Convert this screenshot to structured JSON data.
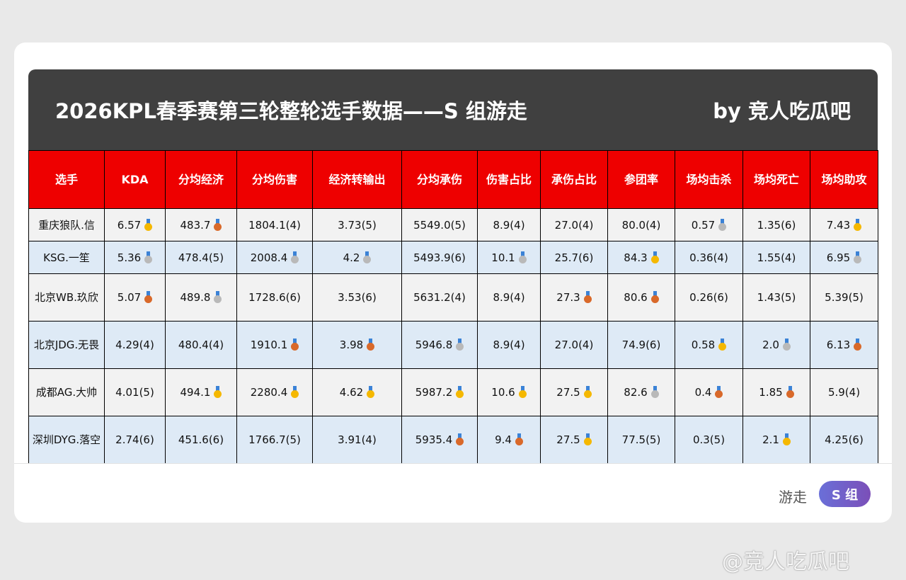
{
  "header": {
    "title": "2026KPL春季赛第三轮整轮选手数据——S 组游走",
    "byline": "by 竞人吃瓜吧"
  },
  "medal_colors": {
    "gold": "#f5b800",
    "silver": "#b9b9b9",
    "bronze": "#d9692a"
  },
  "table": {
    "columns": [
      "选手",
      "KDA",
      "分均经济",
      "分均伤害",
      "经济转输出",
      "分均承伤",
      "伤害占比",
      "承伤占比",
      "参团率",
      "场均击杀",
      "场均死亡",
      "场均助攻"
    ],
    "rows": [
      [
        {
          "v": "重庆狼队.信"
        },
        {
          "v": "6.57",
          "m": "gold"
        },
        {
          "v": "483.7",
          "m": "bronze"
        },
        {
          "v": "1804.1(4)"
        },
        {
          "v": "3.73(5)"
        },
        {
          "v": "5549.0(5)"
        },
        {
          "v": "8.9(4)"
        },
        {
          "v": "27.0(4)"
        },
        {
          "v": "80.0(4)"
        },
        {
          "v": "0.57",
          "m": "silver"
        },
        {
          "v": "1.35(6)"
        },
        {
          "v": "7.43",
          "m": "gold"
        }
      ],
      [
        {
          "v": "KSG.一笙"
        },
        {
          "v": "5.36",
          "m": "silver"
        },
        {
          "v": "478.4(5)"
        },
        {
          "v": "2008.4",
          "m": "silver"
        },
        {
          "v": "4.2",
          "m": "silver"
        },
        {
          "v": "5493.9(6)"
        },
        {
          "v": "10.1",
          "m": "silver"
        },
        {
          "v": "25.7(6)"
        },
        {
          "v": "84.3",
          "m": "gold"
        },
        {
          "v": "0.36(4)"
        },
        {
          "v": "1.55(4)"
        },
        {
          "v": "6.95",
          "m": "silver"
        }
      ],
      [
        {
          "v": "北京WB.玖欣"
        },
        {
          "v": "5.07",
          "m": "bronze"
        },
        {
          "v": "489.8",
          "m": "silver"
        },
        {
          "v": "1728.6(6)"
        },
        {
          "v": "3.53(6)"
        },
        {
          "v": "5631.2(4)"
        },
        {
          "v": "8.9(4)"
        },
        {
          "v": "27.3",
          "m": "bronze"
        },
        {
          "v": "80.6",
          "m": "bronze"
        },
        {
          "v": "0.26(6)"
        },
        {
          "v": "1.43(5)"
        },
        {
          "v": "5.39(5)"
        }
      ],
      [
        {
          "v": "北京JDG.无畏"
        },
        {
          "v": "4.29(4)"
        },
        {
          "v": "480.4(4)"
        },
        {
          "v": "1910.1",
          "m": "bronze"
        },
        {
          "v": "3.98",
          "m": "bronze"
        },
        {
          "v": "5946.8",
          "m": "silver"
        },
        {
          "v": "8.9(4)"
        },
        {
          "v": "27.0(4)"
        },
        {
          "v": "74.9(6)"
        },
        {
          "v": "0.58",
          "m": "gold"
        },
        {
          "v": "2.0",
          "m": "silver"
        },
        {
          "v": "6.13",
          "m": "bronze"
        }
      ],
      [
        {
          "v": "成都AG.大帅"
        },
        {
          "v": "4.01(5)"
        },
        {
          "v": "494.1",
          "m": "gold"
        },
        {
          "v": "2280.4",
          "m": "gold"
        },
        {
          "v": "4.62",
          "m": "gold"
        },
        {
          "v": "5987.2",
          "m": "gold"
        },
        {
          "v": "10.6",
          "m": "gold"
        },
        {
          "v": "27.5",
          "m": "gold"
        },
        {
          "v": "82.6",
          "m": "silver"
        },
        {
          "v": "0.4",
          "m": "bronze"
        },
        {
          "v": "1.85",
          "m": "bronze"
        },
        {
          "v": "5.9(4)"
        }
      ],
      [
        {
          "v": "深圳DYG.落空"
        },
        {
          "v": "2.74(6)"
        },
        {
          "v": "451.6(6)"
        },
        {
          "v": "1766.7(5)"
        },
        {
          "v": "3.91(4)"
        },
        {
          "v": "5935.4",
          "m": "bronze"
        },
        {
          "v": "9.4",
          "m": "bronze"
        },
        {
          "v": "27.5",
          "m": "gold"
        },
        {
          "v": "77.5(5)"
        },
        {
          "v": "0.3(5)"
        },
        {
          "v": "2.1",
          "m": "gold"
        },
        {
          "v": "4.25(6)"
        }
      ]
    ]
  },
  "footer": {
    "role": "游走",
    "group_badge": "S 组"
  },
  "watermark": "@竞人吃瓜吧"
}
